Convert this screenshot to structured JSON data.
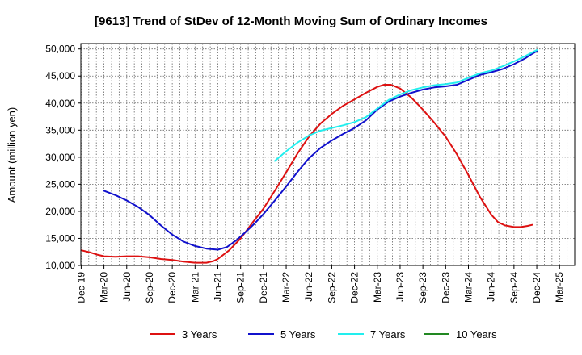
{
  "chart_data": {
    "type": "line",
    "title": "[9613]  Trend of StDev of 12-Month Moving Sum of Ordinary Incomes",
    "xlabel": "",
    "ylabel": "Amount (million yen)",
    "ylim": [
      10000,
      51000
    ],
    "yticks": [
      10000,
      15000,
      20000,
      25000,
      30000,
      35000,
      40000,
      45000,
      50000
    ],
    "ytick_labels": [
      "10,000",
      "15,000",
      "20,000",
      "25,000",
      "30,000",
      "35,000",
      "40,000",
      "45,000",
      "50,000"
    ],
    "xticks": [
      "Dec-19",
      "Mar-20",
      "Jun-20",
      "Sep-20",
      "Dec-20",
      "Mar-21",
      "Jun-21",
      "Sep-21",
      "Dec-21",
      "Mar-22",
      "Jun-22",
      "Sep-22",
      "Dec-22",
      "Mar-23",
      "Jun-23",
      "Sep-23",
      "Dec-23",
      "Mar-24",
      "Jun-24",
      "Sep-24",
      "Dec-24",
      "Mar-25"
    ],
    "grid": true,
    "legend_position": "bottom",
    "series": [
      {
        "name": "3 Years",
        "color": "#dd1111",
        "points": [
          [
            0,
            12800
          ],
          [
            0.4,
            12400
          ],
          [
            0.7,
            12000
          ],
          [
            1,
            11700
          ],
          [
            1.5,
            11600
          ],
          [
            2,
            11700
          ],
          [
            2.5,
            11700
          ],
          [
            3,
            11500
          ],
          [
            3.5,
            11200
          ],
          [
            4,
            11000
          ],
          [
            4.5,
            10700
          ],
          [
            5,
            10500
          ],
          [
            5.5,
            10500
          ],
          [
            5.8,
            10800
          ],
          [
            6,
            11200
          ],
          [
            6.5,
            12800
          ],
          [
            7,
            15000
          ],
          [
            7.5,
            17800
          ],
          [
            8,
            20500
          ],
          [
            8.5,
            23800
          ],
          [
            9,
            27200
          ],
          [
            9.5,
            30700
          ],
          [
            10,
            33800
          ],
          [
            10.5,
            36200
          ],
          [
            11,
            38000
          ],
          [
            11.5,
            39500
          ],
          [
            12,
            40700
          ],
          [
            12.5,
            41900
          ],
          [
            13,
            43000
          ],
          [
            13.3,
            43400
          ],
          [
            13.6,
            43400
          ],
          [
            14,
            42700
          ],
          [
            14.5,
            41000
          ],
          [
            15,
            38800
          ],
          [
            15.5,
            36400
          ],
          [
            16,
            33800
          ],
          [
            16.5,
            30500
          ],
          [
            17,
            26700
          ],
          [
            17.5,
            22700
          ],
          [
            18,
            19400
          ],
          [
            18.3,
            18000
          ],
          [
            18.6,
            17400
          ],
          [
            19,
            17100
          ],
          [
            19.3,
            17100
          ],
          [
            19.6,
            17300
          ],
          [
            19.8,
            17500
          ]
        ]
      },
      {
        "name": "5 Years",
        "color": "#1111cc",
        "points": [
          [
            1,
            23800
          ],
          [
            1.5,
            23000
          ],
          [
            2,
            22000
          ],
          [
            2.5,
            20800
          ],
          [
            3,
            19300
          ],
          [
            3.5,
            17400
          ],
          [
            4,
            15700
          ],
          [
            4.5,
            14400
          ],
          [
            5,
            13600
          ],
          [
            5.5,
            13100
          ],
          [
            6,
            12900
          ],
          [
            6.4,
            13400
          ],
          [
            6.8,
            14600
          ],
          [
            7.2,
            16100
          ],
          [
            7.6,
            17700
          ],
          [
            8,
            19500
          ],
          [
            8.5,
            22000
          ],
          [
            9,
            24600
          ],
          [
            9.5,
            27300
          ],
          [
            10,
            29800
          ],
          [
            10.5,
            31700
          ],
          [
            11,
            33100
          ],
          [
            11.5,
            34300
          ],
          [
            12,
            35400
          ],
          [
            12.5,
            36800
          ],
          [
            13,
            38800
          ],
          [
            13.5,
            40300
          ],
          [
            14,
            41200
          ],
          [
            14.5,
            41900
          ],
          [
            15,
            42500
          ],
          [
            15.5,
            42900
          ],
          [
            16,
            43100
          ],
          [
            16.5,
            43400
          ],
          [
            17,
            44300
          ],
          [
            17.5,
            45200
          ],
          [
            18,
            45700
          ],
          [
            18.5,
            46300
          ],
          [
            19,
            47200
          ],
          [
            19.5,
            48300
          ],
          [
            19.8,
            49100
          ],
          [
            20,
            49600
          ]
        ]
      },
      {
        "name": "7 Years",
        "color": "#22eeee",
        "points": [
          [
            8.5,
            29300
          ],
          [
            9,
            31100
          ],
          [
            9.5,
            32700
          ],
          [
            10,
            34000
          ],
          [
            10.5,
            34900
          ],
          [
            11,
            35400
          ],
          [
            11.5,
            35900
          ],
          [
            12,
            36500
          ],
          [
            12.5,
            37400
          ],
          [
            13,
            39000
          ],
          [
            13.5,
            40600
          ],
          [
            14,
            41600
          ],
          [
            14.5,
            42400
          ],
          [
            15,
            42900
          ],
          [
            15.5,
            43300
          ],
          [
            16,
            43500
          ],
          [
            16.5,
            43800
          ],
          [
            17,
            44700
          ],
          [
            17.5,
            45500
          ],
          [
            18,
            46000
          ],
          [
            18.5,
            46800
          ],
          [
            19,
            47700
          ],
          [
            19.5,
            48700
          ],
          [
            20,
            49800
          ]
        ]
      },
      {
        "name": "10 Years",
        "color": "#228822",
        "points": []
      }
    ]
  }
}
